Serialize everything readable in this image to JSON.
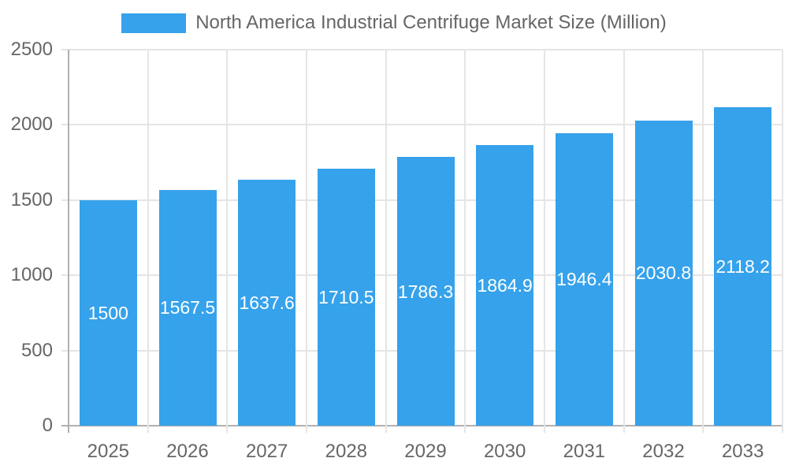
{
  "chart_data": {
    "type": "bar",
    "title": "North America Industrial Centrifuge Market Size (Million)",
    "categories": [
      "2025",
      "2026",
      "2027",
      "2028",
      "2029",
      "2030",
      "2031",
      "2032",
      "2033"
    ],
    "values": [
      1500,
      1567.5,
      1637.6,
      1710.5,
      1786.3,
      1864.9,
      1946.4,
      2030.8,
      2118.2
    ],
    "xlabel": "",
    "ylabel": "",
    "ylim": [
      0,
      2500
    ],
    "y_ticks": [
      0,
      500,
      1000,
      1500,
      2000,
      2500
    ],
    "grid": true,
    "legend_position": "top",
    "value_labels_position": "inside-center",
    "colors": {
      "bar": "#36A2EB",
      "value_label": "#ffffff",
      "axis_text": "#666666",
      "legend_text": "#666666",
      "gridline": "#e5e5e5",
      "axis_line": "#b1b1b1",
      "background": "#ffffff"
    }
  }
}
